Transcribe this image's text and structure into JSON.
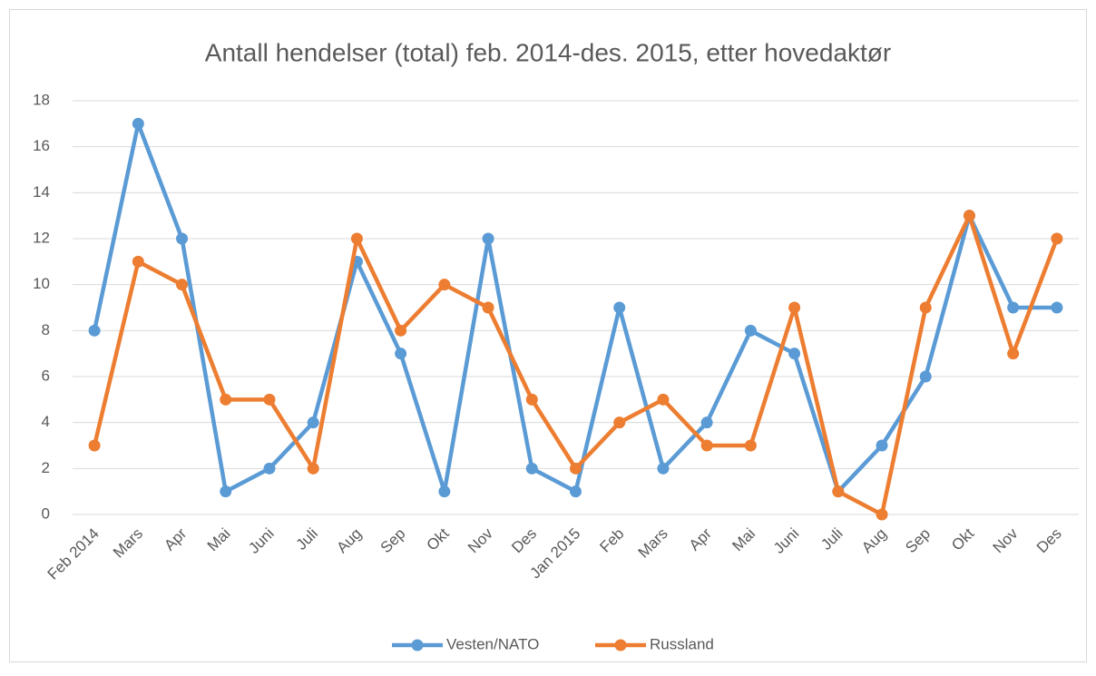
{
  "chart_data": {
    "type": "line",
    "title": "Antall hendelser (total) feb. 2014-des. 2015, etter hovedaktør",
    "categories": [
      "Feb 2014",
      "Mars",
      "Apr",
      "Mai",
      "Juni",
      "Juli",
      "Aug",
      "Sep",
      "Okt",
      "Nov",
      "Des",
      "Jan 2015",
      "Feb",
      "Mars",
      "Apr",
      "Mai",
      "Juni",
      "Juli",
      "Aug",
      "Sep",
      "Okt",
      "Nov",
      "Des"
    ],
    "series": [
      {
        "name": "Vesten/NATO",
        "color": "#5b9bd5",
        "values": [
          8,
          17,
          12,
          1,
          2,
          4,
          11,
          7,
          1,
          12,
          2,
          1,
          9,
          2,
          4,
          8,
          7,
          1,
          3,
          6,
          13,
          9,
          9
        ]
      },
      {
        "name": "Russland",
        "color": "#ed7d31",
        "values": [
          3,
          11,
          10,
          5,
          5,
          2,
          12,
          8,
          10,
          9,
          5,
          2,
          4,
          5,
          3,
          3,
          9,
          1,
          0,
          9,
          13,
          7,
          12
        ]
      }
    ],
    "ylim": [
      0,
      18
    ],
    "yticks": [
      0,
      2,
      4,
      6,
      8,
      10,
      12,
      14,
      16,
      18
    ],
    "grid": true,
    "legend": "bottom"
  }
}
